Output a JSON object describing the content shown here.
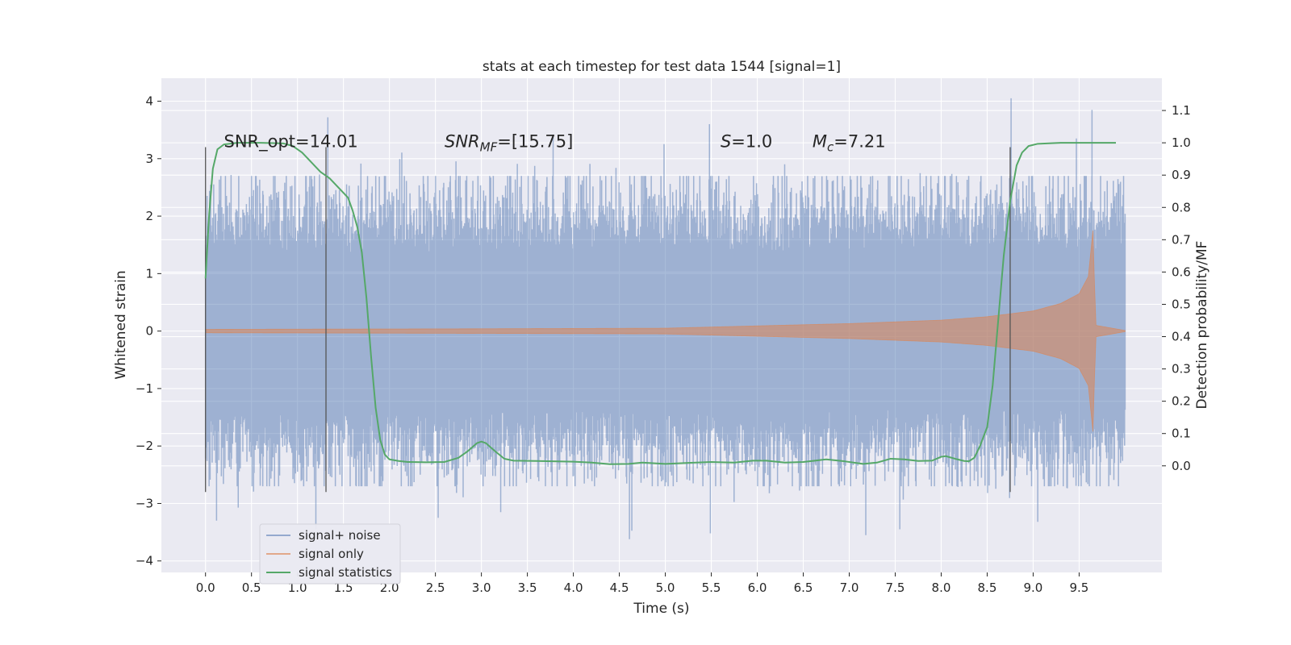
{
  "chart_data": {
    "type": "line",
    "title": "stats at each timestep for test data 1544 [signal=1]",
    "xlabel": "Time (s)",
    "ylabel": "Whitened strain",
    "y2label": "Detection probability/MF",
    "xlim": [
      -0.48,
      10.4
    ],
    "ylim": [
      -4.2,
      4.4
    ],
    "y2lim": [
      -0.33,
      1.2
    ],
    "xticks": [
      0.0,
      0.5,
      1.0,
      1.5,
      2.0,
      2.5,
      3.0,
      3.5,
      4.0,
      4.5,
      5.0,
      5.5,
      6.0,
      6.5,
      7.0,
      7.5,
      8.0,
      8.5,
      9.0,
      9.5
    ],
    "xtick_labels": [
      "0.0",
      "0.5",
      "1.0",
      "1.5",
      "2.0",
      "2.5",
      "3.0",
      "3.5",
      "4.0",
      "4.5",
      "5.0",
      "5.5",
      "6.0",
      "6.5",
      "7.0",
      "7.5",
      "8.0",
      "8.5",
      "9.0",
      "9.5"
    ],
    "yticks": [
      -4,
      -3,
      -2,
      -1,
      0,
      1,
      2,
      3,
      4
    ],
    "ytick_labels": [
      "−4",
      "−3",
      "−2",
      "−1",
      "0",
      "1",
      "2",
      "3",
      "4"
    ],
    "y2ticks": [
      0.0,
      0.1,
      0.2,
      0.3,
      0.4,
      0.5,
      0.6,
      0.7,
      0.8,
      0.9,
      1.0,
      1.1
    ],
    "y2tick_labels": [
      "0.0",
      "0.1",
      "0.2",
      "0.3",
      "0.4",
      "0.5",
      "0.6",
      "0.7",
      "0.8",
      "0.9",
      "1.0",
      "1.1"
    ],
    "grid": true,
    "legend_position": "lower-left",
    "annotations": [
      {
        "id": "snr-opt",
        "x": 0.2,
        "y": 3.2,
        "parts": [
          {
            "t": "SNR_opt=14.01"
          }
        ]
      },
      {
        "id": "snr-mf",
        "x": 2.6,
        "y": 3.2,
        "parts": [
          {
            "t": "SNR",
            "i": true
          },
          {
            "t": "MF",
            "i": true,
            "sub": true
          },
          {
            "t": "=[15.75]"
          }
        ]
      },
      {
        "id": "s-value",
        "x": 5.6,
        "y": 3.2,
        "parts": [
          {
            "t": "S",
            "i": true
          },
          {
            "t": "=1.0"
          }
        ]
      },
      {
        "id": "mc-value",
        "x": 6.6,
        "y": 3.2,
        "parts": [
          {
            "t": "M",
            "i": true
          },
          {
            "t": "c",
            "i": true,
            "sub": true
          },
          {
            "t": "=7.21"
          }
        ]
      }
    ],
    "vertical_lines": [
      {
        "x": 0.0,
        "y0": -2.8,
        "y1": 3.2
      },
      {
        "x": 1.31,
        "y0": -2.8,
        "y1": 3.2
      },
      {
        "x": 8.75,
        "y0": -2.8,
        "y1": 3.2
      }
    ],
    "series": [
      {
        "name": "signal+ noise",
        "color": "#4c72b0",
        "axis": "left",
        "description": "dense whitened strain samples, roughly Gaussian with std ~0.75 over 0 to 10 s",
        "x_range": [
          0.0,
          10.0
        ],
        "typical_envelope": [
          -2.3,
          2.3
        ],
        "peaks": [
          {
            "x": 1.33,
            "y": 3.72
          },
          {
            "x": 5.48,
            "y": 3.6
          },
          {
            "x": 8.76,
            "y": 4.05
          },
          {
            "x": 9.64,
            "y": 3.85
          },
          {
            "x": 3.78,
            "y": 3.42
          },
          {
            "x": 9.47,
            "y": 3.35
          },
          {
            "x": 0.12,
            "y": -3.3
          },
          {
            "x": 1.2,
            "y": -3.45
          },
          {
            "x": 4.61,
            "y": -3.62
          },
          {
            "x": 5.49,
            "y": -3.52
          },
          {
            "x": 7.18,
            "y": -3.55
          },
          {
            "x": 7.55,
            "y": -3.45
          },
          {
            "x": 9.05,
            "y": -3.32
          },
          {
            "x": 2.53,
            "y": -3.25
          },
          {
            "x": 3.21,
            "y": -3.15
          }
        ]
      },
      {
        "name": "signal only",
        "color": "#dd8452",
        "axis": "left",
        "description": "chirp waveform with slowly growing amplitude, peak near 9.65 s then ringdown",
        "envelope": [
          {
            "x": 0.0,
            "a": 0.03
          },
          {
            "x": 3.0,
            "a": 0.04
          },
          {
            "x": 5.0,
            "a": 0.05
          },
          {
            "x": 6.0,
            "a": 0.09
          },
          {
            "x": 7.0,
            "a": 0.13
          },
          {
            "x": 8.0,
            "a": 0.19
          },
          {
            "x": 8.5,
            "a": 0.25
          },
          {
            "x": 9.0,
            "a": 0.35
          },
          {
            "x": 9.3,
            "a": 0.48
          },
          {
            "x": 9.5,
            "a": 0.65
          },
          {
            "x": 9.6,
            "a": 0.95
          },
          {
            "x": 9.65,
            "a": 1.75
          },
          {
            "x": 9.68,
            "a": 0.1
          },
          {
            "x": 10.0,
            "a": 0.01
          }
        ]
      },
      {
        "name": "signal statistics",
        "color": "#55a868",
        "axis": "right",
        "points": [
          [
            0.0,
            0.58
          ],
          [
            0.04,
            0.78
          ],
          [
            0.08,
            0.92
          ],
          [
            0.13,
            0.98
          ],
          [
            0.2,
            0.995
          ],
          [
            0.35,
            1.0
          ],
          [
            0.6,
            1.0
          ],
          [
            0.85,
            0.998
          ],
          [
            0.95,
            0.99
          ],
          [
            1.05,
            0.97
          ],
          [
            1.15,
            0.94
          ],
          [
            1.25,
            0.91
          ],
          [
            1.35,
            0.89
          ],
          [
            1.45,
            0.86
          ],
          [
            1.55,
            0.83
          ],
          [
            1.6,
            0.79
          ],
          [
            1.65,
            0.74
          ],
          [
            1.7,
            0.66
          ],
          [
            1.75,
            0.52
          ],
          [
            1.8,
            0.34
          ],
          [
            1.85,
            0.18
          ],
          [
            1.9,
            0.08
          ],
          [
            1.95,
            0.035
          ],
          [
            2.0,
            0.02
          ],
          [
            2.1,
            0.015
          ],
          [
            2.2,
            0.012
          ],
          [
            2.4,
            0.011
          ],
          [
            2.6,
            0.012
          ],
          [
            2.75,
            0.025
          ],
          [
            2.85,
            0.045
          ],
          [
            2.95,
            0.07
          ],
          [
            3.0,
            0.075
          ],
          [
            3.05,
            0.07
          ],
          [
            3.15,
            0.045
          ],
          [
            3.25,
            0.022
          ],
          [
            3.35,
            0.016
          ],
          [
            3.6,
            0.015
          ],
          [
            4.0,
            0.013
          ],
          [
            4.2,
            0.01
          ],
          [
            4.4,
            0.005
          ],
          [
            4.6,
            0.006
          ],
          [
            4.75,
            0.01
          ],
          [
            5.0,
            0.006
          ],
          [
            5.25,
            0.009
          ],
          [
            5.5,
            0.012
          ],
          [
            5.75,
            0.01
          ],
          [
            5.95,
            0.016
          ],
          [
            6.1,
            0.016
          ],
          [
            6.3,
            0.01
          ],
          [
            6.5,
            0.012
          ],
          [
            6.75,
            0.02
          ],
          [
            6.95,
            0.014
          ],
          [
            7.15,
            0.006
          ],
          [
            7.3,
            0.01
          ],
          [
            7.45,
            0.022
          ],
          [
            7.6,
            0.02
          ],
          [
            7.75,
            0.015
          ],
          [
            7.9,
            0.016
          ],
          [
            8.0,
            0.028
          ],
          [
            8.05,
            0.03
          ],
          [
            8.15,
            0.022
          ],
          [
            8.25,
            0.015
          ],
          [
            8.3,
            0.014
          ],
          [
            8.36,
            0.025
          ],
          [
            8.42,
            0.06
          ],
          [
            8.5,
            0.12
          ],
          [
            8.56,
            0.25
          ],
          [
            8.62,
            0.45
          ],
          [
            8.68,
            0.65
          ],
          [
            8.75,
            0.82
          ],
          [
            8.82,
            0.93
          ],
          [
            8.88,
            0.97
          ],
          [
            8.95,
            0.99
          ],
          [
            9.05,
            0.997
          ],
          [
            9.3,
            1.0
          ],
          [
            9.6,
            1.0
          ],
          [
            9.9,
            1.0
          ]
        ]
      }
    ]
  }
}
